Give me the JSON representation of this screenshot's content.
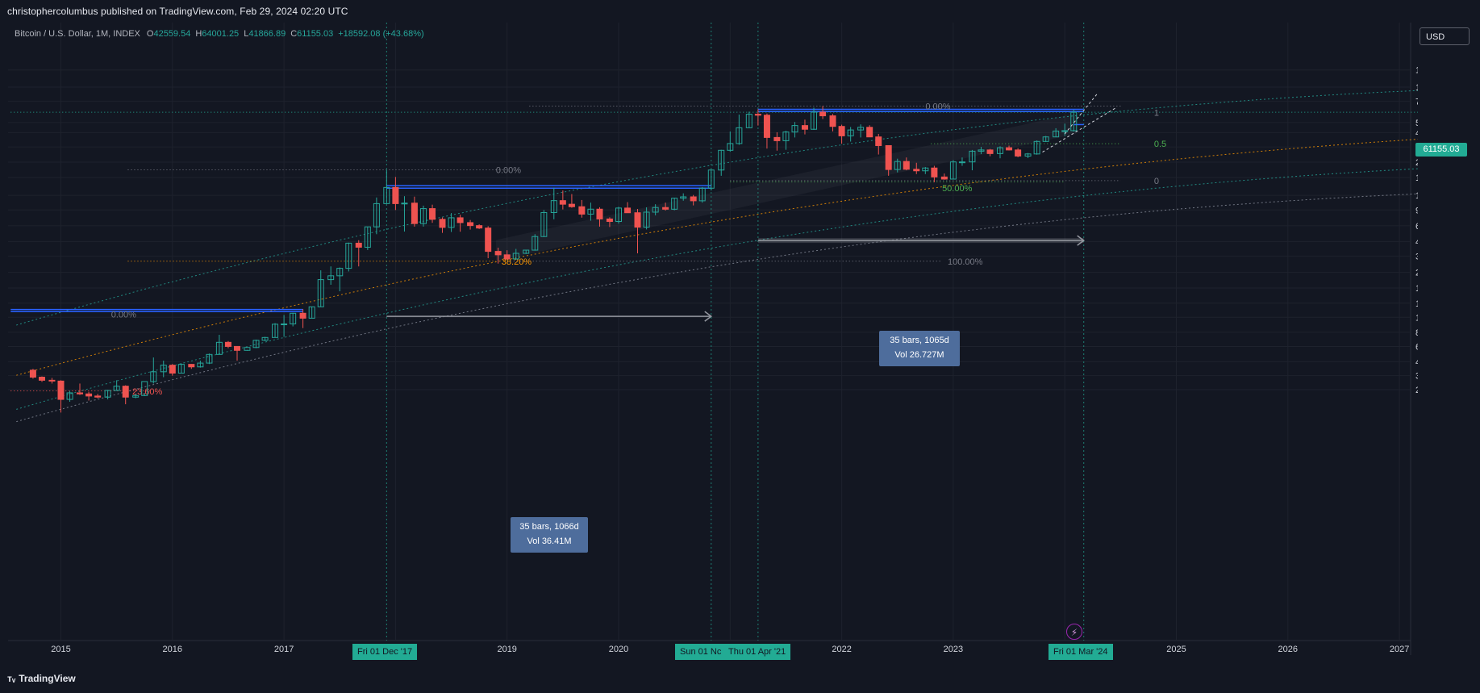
{
  "header": {
    "publisher": "christophercolumbus published on TradingView.com, Feb 29, 2024 02:20 UTC"
  },
  "legend": {
    "symbol": "Bitcoin / U.S. Dollar, 1M, INDEX",
    "o_label": "O",
    "o": "42559.54",
    "h_label": "H",
    "h": "64001.25",
    "l_label": "L",
    "l": "41866.89",
    "c_label": "C",
    "c": "61155.03",
    "change": "+18592.08 (+43.68%)"
  },
  "currency_button": "USD",
  "last_price": "61155.03",
  "footer": {
    "brand": "TradingView"
  },
  "colors": {
    "up": "#26a69a",
    "down": "#ef5350",
    "background": "#131722",
    "accent": "#22ab94",
    "box": "#4e6d9c"
  },
  "measures": [
    {
      "line1": "35 bars, 1066d",
      "line2": "Vol 36.41M"
    },
    {
      "line1": "35 bars, 1065d",
      "line2": "Vol 26.727M"
    }
  ],
  "date_tags": [
    "Fri 01 Dec '17",
    "Sun 01 Nc",
    "Thu 01 Apr '21",
    "Fri 01 Mar '24"
  ],
  "chart_data": {
    "type": "candlestick",
    "symbol": "Bitcoin / U.S. Dollar, 1M, INDEX",
    "y_scale": "log",
    "ylim": [
      250,
      200000
    ],
    "y_ticks": [
      "140000.00",
      "100000.00",
      "76000.00",
      "50000.00",
      "41000.00",
      "31000.00",
      "23000.00",
      "17000.00",
      "12000.00",
      "9000.00",
      "6600.00",
      "4850.00",
      "3650.00",
      "2650.00",
      "1950.00",
      "1450.00",
      "1100.00",
      "820.00",
      "620.00",
      "460.00",
      "350.00",
      "266.00"
    ],
    "x_ticks": [
      "2015",
      "2016",
      "2017",
      "2019",
      "2020",
      "2022",
      "2023",
      "2025",
      "2026",
      "2027"
    ],
    "fib_labels": [
      {
        "text": "0.00%"
      },
      {
        "text": "0.00%"
      },
      {
        "text": "0.00%"
      },
      {
        "text": "38.20%"
      },
      {
        "text": "50.00%"
      },
      {
        "text": "100.00%"
      },
      {
        "text": "23.60%"
      },
      {
        "text": "1"
      },
      {
        "text": "0.5"
      },
      {
        "text": "0"
      }
    ],
    "candles": [
      [
        2014.75,
        390,
        400,
        330,
        340
      ],
      [
        2014.83,
        340,
        345,
        310,
        320
      ],
      [
        2014.92,
        320,
        335,
        300,
        315
      ],
      [
        2015.0,
        315,
        320,
        170,
        220
      ],
      [
        2015.08,
        220,
        260,
        210,
        250
      ],
      [
        2015.17,
        250,
        300,
        240,
        245
      ],
      [
        2015.25,
        245,
        255,
        215,
        235
      ],
      [
        2015.33,
        235,
        245,
        225,
        230
      ],
      [
        2015.42,
        230,
        265,
        220,
        262
      ],
      [
        2015.5,
        262,
        320,
        260,
        285
      ],
      [
        2015.58,
        285,
        290,
        200,
        230
      ],
      [
        2015.67,
        230,
        245,
        225,
        237
      ],
      [
        2015.75,
        237,
        250,
        235,
        312
      ],
      [
        2015.83,
        312,
        500,
        300,
        378
      ],
      [
        2015.92,
        378,
        470,
        340,
        430
      ],
      [
        2016.0,
        430,
        440,
        350,
        368
      ],
      [
        2016.08,
        368,
        445,
        365,
        437
      ],
      [
        2016.17,
        437,
        440,
        400,
        416
      ],
      [
        2016.25,
        416,
        470,
        410,
        448
      ],
      [
        2016.33,
        448,
        540,
        440,
        531
      ],
      [
        2016.42,
        531,
        780,
        530,
        673
      ],
      [
        2016.5,
        673,
        690,
        600,
        621
      ],
      [
        2016.58,
        621,
        620,
        470,
        575
      ],
      [
        2016.67,
        575,
        580,
        570,
        608
      ],
      [
        2016.75,
        608,
        710,
        600,
        700
      ],
      [
        2016.83,
        700,
        750,
        690,
        740
      ],
      [
        2016.92,
        740,
        980,
        740,
        960
      ],
      [
        2017.0,
        960,
        1150,
        750,
        965
      ],
      [
        2017.08,
        965,
        1200,
        920,
        1190
      ],
      [
        2017.17,
        1190,
        1290,
        890,
        1080
      ],
      [
        2017.25,
        1080,
        1350,
        1080,
        1350
      ],
      [
        2017.33,
        1350,
        2760,
        1350,
        2300
      ],
      [
        2017.42,
        2300,
        2980,
        2080,
        2480
      ],
      [
        2017.5,
        2480,
        2920,
        1830,
        2870
      ],
      [
        2017.58,
        2870,
        4750,
        2700,
        4700
      ],
      [
        2017.67,
        4700,
        4980,
        2980,
        4340
      ],
      [
        2017.75,
        4340,
        6470,
        4110,
        6470
      ],
      [
        2017.83,
        6470,
        11500,
        5600,
        10200
      ],
      [
        2017.92,
        10200,
        19800,
        10200,
        14000
      ],
      [
        2018.0,
        14000,
        17200,
        9000,
        10200
      ],
      [
        2018.08,
        10200,
        11800,
        5900,
        10300
      ],
      [
        2018.17,
        10300,
        11700,
        6500,
        6900
      ],
      [
        2018.25,
        6900,
        9800,
        6500,
        9250
      ],
      [
        2018.33,
        9250,
        9990,
        7000,
        7500
      ],
      [
        2018.42,
        7500,
        7780,
        5750,
        6400
      ],
      [
        2018.5,
        6400,
        8480,
        5850,
        7730
      ],
      [
        2018.58,
        7730,
        8200,
        5880,
        7030
      ],
      [
        2018.67,
        7030,
        7400,
        6130,
        6630
      ],
      [
        2018.75,
        6630,
        6800,
        6200,
        6320
      ],
      [
        2018.83,
        6320,
        6550,
        3500,
        4000
      ],
      [
        2018.92,
        4000,
        4300,
        3150,
        3740
      ],
      [
        2019.0,
        3740,
        4090,
        3400,
        3450
      ],
      [
        2019.08,
        3450,
        4200,
        3400,
        3850
      ],
      [
        2019.17,
        3850,
        4130,
        3800,
        4100
      ],
      [
        2019.25,
        4100,
        5600,
        4060,
        5350
      ],
      [
        2019.33,
        5350,
        9000,
        5300,
        8560
      ],
      [
        2019.42,
        8560,
        13900,
        7500,
        10820
      ],
      [
        2019.5,
        10820,
        13200,
        9100,
        10080
      ],
      [
        2019.58,
        10080,
        12300,
        9400,
        9600
      ],
      [
        2019.67,
        9600,
        10950,
        7750,
        8300
      ],
      [
        2019.75,
        8300,
        10400,
        7300,
        9150
      ],
      [
        2019.83,
        9150,
        9500,
        6500,
        7550
      ],
      [
        2019.92,
        7550,
        7800,
        6450,
        7190
      ],
      [
        2020.0,
        7190,
        9580,
        6900,
        9350
      ],
      [
        2020.08,
        9350,
        10500,
        8500,
        8530
      ],
      [
        2020.17,
        8530,
        9180,
        3850,
        6430
      ],
      [
        2020.25,
        6430,
        9480,
        6150,
        8630
      ],
      [
        2020.33,
        8630,
        10080,
        8100,
        9450
      ],
      [
        2020.42,
        9450,
        10400,
        8900,
        9140
      ],
      [
        2020.5,
        9140,
        11450,
        8950,
        11340
      ],
      [
        2020.58,
        11340,
        12480,
        10800,
        11650
      ],
      [
        2020.67,
        11650,
        12080,
        9850,
        10780
      ],
      [
        2020.75,
        10780,
        14100,
        10400,
        13800
      ],
      [
        2020.83,
        13800,
        19900,
        13200,
        19700
      ],
      [
        2020.92,
        19700,
        29300,
        17600,
        29000
      ],
      [
        2021.0,
        29000,
        41900,
        28200,
        33100
      ],
      [
        2021.08,
        33100,
        58400,
        32300,
        45100
      ],
      [
        2021.17,
        45100,
        61800,
        44900,
        58800
      ],
      [
        2021.25,
        58800,
        64900,
        47100,
        57700
      ],
      [
        2021.33,
        57700,
        59600,
        30000,
        37300
      ],
      [
        2021.42,
        37300,
        41300,
        28800,
        35000
      ],
      [
        2021.5,
        35000,
        42500,
        29300,
        41500
      ],
      [
        2021.58,
        41500,
        50500,
        37300,
        47100
      ],
      [
        2021.67,
        47100,
        52900,
        39600,
        43800
      ],
      [
        2021.75,
        43800,
        66900,
        43300,
        61300
      ],
      [
        2021.83,
        61300,
        69000,
        53500,
        57000
      ],
      [
        2021.92,
        57000,
        59100,
        42000,
        46300
      ],
      [
        2022.0,
        46300,
        47900,
        33000,
        38500
      ],
      [
        2022.08,
        38500,
        45800,
        34400,
        43200
      ],
      [
        2022.17,
        43200,
        48200,
        37300,
        45500
      ],
      [
        2022.25,
        45500,
        47400,
        37600,
        37700
      ],
      [
        2022.33,
        37700,
        40000,
        26700,
        31800
      ],
      [
        2022.42,
        31800,
        31900,
        17600,
        19900
      ],
      [
        2022.5,
        19900,
        24600,
        18800,
        23300
      ],
      [
        2022.58,
        23300,
        25200,
        19600,
        20000
      ],
      [
        2022.67,
        20000,
        22700,
        18200,
        19400
      ],
      [
        2022.75,
        19400,
        20900,
        18200,
        20500
      ],
      [
        2022.83,
        20500,
        21400,
        15500,
        17200
      ],
      [
        2022.92,
        17200,
        18400,
        16300,
        16500
      ],
      [
        2023.0,
        16500,
        23900,
        16500,
        23100
      ],
      [
        2023.08,
        23100,
        25200,
        21400,
        23100
      ],
      [
        2023.17,
        23100,
        29200,
        19600,
        28500
      ],
      [
        2023.25,
        28500,
        31000,
        26900,
        29200
      ],
      [
        2023.33,
        29200,
        29800,
        25800,
        27200
      ],
      [
        2023.42,
        27200,
        31400,
        24800,
        30500
      ],
      [
        2023.5,
        30500,
        31800,
        28900,
        29200
      ],
      [
        2023.58,
        29200,
        30200,
        25300,
        25900
      ],
      [
        2023.67,
        25900,
        27500,
        24900,
        27000
      ],
      [
        2023.75,
        27000,
        35200,
        26600,
        34500
      ],
      [
        2023.83,
        34500,
        38400,
        34100,
        37700
      ],
      [
        2023.92,
        37700,
        44700,
        37600,
        42300
      ],
      [
        2024.0,
        42300,
        48900,
        38500,
        42600
      ],
      [
        2024.08,
        42600,
        64000,
        41900,
        61155
      ]
    ]
  }
}
